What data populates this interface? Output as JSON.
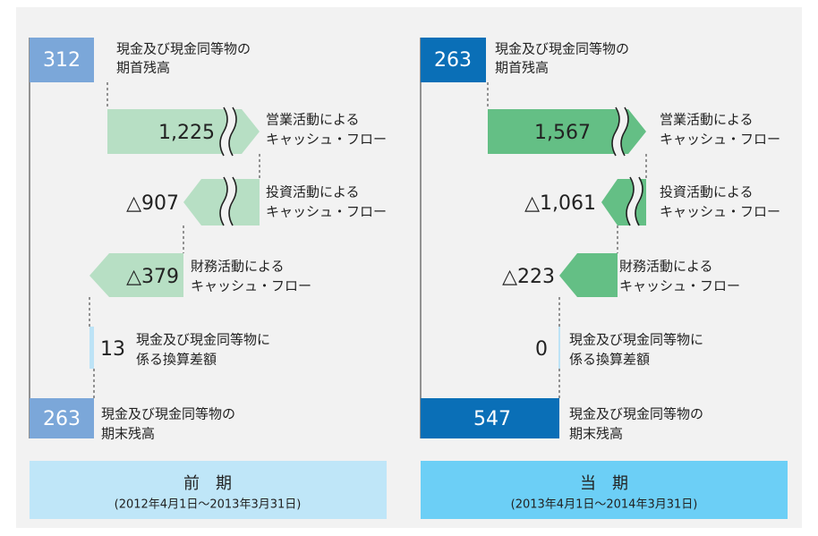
{
  "panels": [
    {
      "title": "前　期",
      "period": "(2012年4月1日～2013年3月31日)",
      "items": [
        {
          "value": "312",
          "label": [
            "現金及び現金同等物の",
            "期首残高"
          ]
        },
        {
          "value": "1,225",
          "label": [
            "営業活動による",
            "キャッシュ・フロー"
          ]
        },
        {
          "value": "△907",
          "label": [
            "投資活動による",
            "キャッシュ・フロー"
          ]
        },
        {
          "value": "△379",
          "label": [
            "財務活動による",
            "キャッシュ・フロー"
          ]
        },
        {
          "value": "13",
          "label": [
            "現金及び現金同等物に",
            "係る換算差額"
          ]
        },
        {
          "value": "263",
          "label": [
            "現金及び現金同等物の",
            "期末残高"
          ]
        }
      ]
    },
    {
      "title": "当　期",
      "period": "(2013年4月1日～2014年3月31日)",
      "items": [
        {
          "value": "263",
          "label": [
            "現金及び現金同等物の",
            "期首残高"
          ]
        },
        {
          "value": "1,567",
          "label": [
            "営業活動による",
            "キャッシュ・フロー"
          ]
        },
        {
          "value": "△1,061",
          "label": [
            "投資活動による",
            "キャッシュ・フロー"
          ]
        },
        {
          "value": "△223",
          "label": [
            "財務活動による",
            "キャッシュ・フロー"
          ]
        },
        {
          "value": "0",
          "label": [
            "現金及び現金同等物に",
            "係る換算差額"
          ]
        },
        {
          "value": "547",
          "label": [
            "現金及び現金同等物の",
            "期末残高"
          ]
        }
      ]
    }
  ]
}
